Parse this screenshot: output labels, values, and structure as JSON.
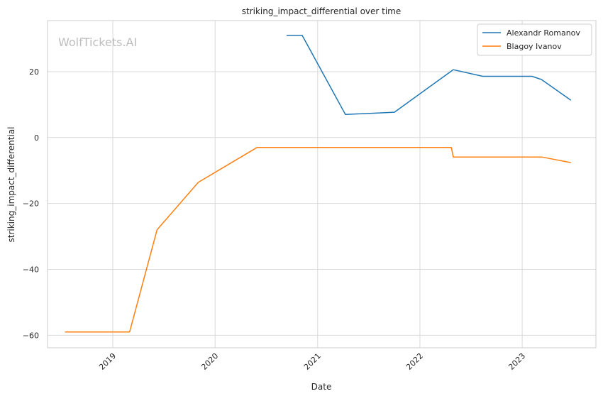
{
  "watermark": "WolfTickets.AI",
  "chart_data": {
    "type": "line",
    "title": "striking_impact_differential over time",
    "xlabel": "Date",
    "ylabel": "striking_impact_differential",
    "x_tick_labels": [
      "2019",
      "2020",
      "2021",
      "2022",
      "2023"
    ],
    "y_tick_labels": [
      "−60",
      "−40",
      "−20",
      "0",
      "20"
    ],
    "xlim": [
      "2018-05-13",
      "2023-09-21"
    ],
    "ylim": [
      -63.8,
      35.5
    ],
    "grid": true,
    "legend_position": "top-right",
    "series": [
      {
        "name": "Alexandr Romanov",
        "color": "#1f77b4",
        "points": [
          [
            "2020-09-12",
            31.0
          ],
          [
            "2020-11-07",
            31.0
          ],
          [
            "2021-04-10",
            7.0
          ],
          [
            "2021-10-02",
            7.7
          ],
          [
            "2022-04-30",
            20.6
          ],
          [
            "2022-08-13",
            18.6
          ],
          [
            "2023-02-05",
            18.6
          ],
          [
            "2023-03-11",
            17.6
          ],
          [
            "2023-06-24",
            11.3
          ]
        ]
      },
      {
        "name": "Blagoy Ivanov",
        "color": "#ff7f0e",
        "points": [
          [
            "2018-07-14",
            -59.0
          ],
          [
            "2019-03-02",
            -59.0
          ],
          [
            "2019-06-08",
            -28.0
          ],
          [
            "2019-11-02",
            -13.6
          ],
          [
            "2020-05-30",
            -3.0
          ],
          [
            "2022-04-23",
            -3.0
          ],
          [
            "2022-04-30",
            -5.9
          ],
          [
            "2023-03-11",
            -5.9
          ],
          [
            "2023-06-24",
            -7.6
          ]
        ]
      }
    ]
  }
}
